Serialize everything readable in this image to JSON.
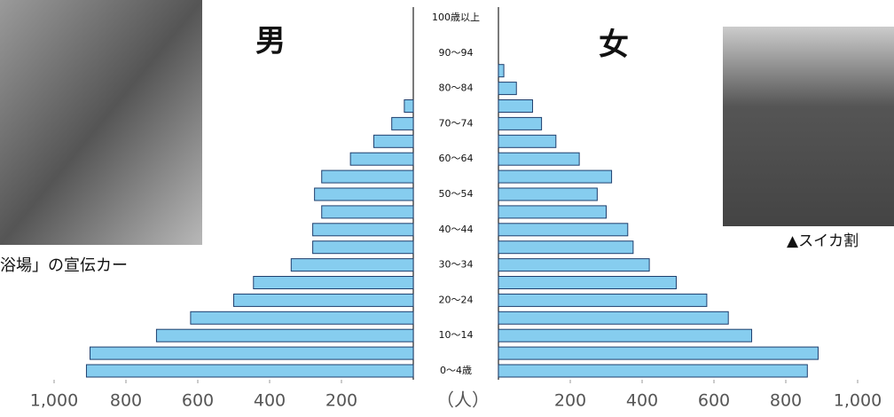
{
  "chart_data": {
    "type": "pyramid",
    "categories": [
      "0～4歳",
      null,
      "10～14",
      null,
      "20～24",
      null,
      "30～34",
      null,
      "40～44",
      null,
      "50～54",
      null,
      "60～64",
      null,
      "70～74",
      null,
      "80～84",
      null,
      "90～94",
      null,
      "100歳以上"
    ],
    "series": [
      {
        "name": "男",
        "color": "#86cdef",
        "values": [
          910,
          900,
          715,
          620,
          500,
          445,
          340,
          280,
          280,
          255,
          275,
          255,
          175,
          110,
          60,
          25,
          null,
          null,
          null,
          null,
          null
        ]
      },
      {
        "name": "女",
        "color": "#86cdef",
        "values": [
          860,
          890,
          705,
          640,
          580,
          495,
          420,
          375,
          360,
          300,
          275,
          315,
          225,
          160,
          120,
          95,
          50,
          15,
          null,
          null,
          null
        ]
      }
    ],
    "xlim": [
      0,
      1000
    ],
    "xticks": [
      200,
      400,
      600,
      800,
      {
        "value": 1000,
        "label": "1,000"
      }
    ],
    "x_label": "（人）",
    "annotations": [
      "浴場」の宣伝カー",
      "▲スイカ割"
    ]
  }
}
